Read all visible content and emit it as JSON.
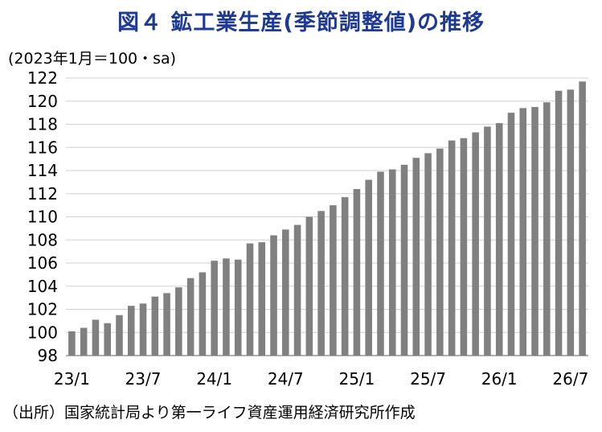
{
  "chart_data": {
    "type": "bar",
    "title": "図４ 鉱工業生産(季節調整値)の推移",
    "unit_label": "(2023年1月＝100・sa)",
    "source": "（出所）国家統計局より第一ライフ資産運用経済研究所作成",
    "xlabel": "",
    "ylabel": "",
    "ylim": [
      98,
      122
    ],
    "yticks": [
      98,
      100,
      102,
      104,
      106,
      108,
      110,
      112,
      114,
      116,
      118,
      120,
      122
    ],
    "grid": true,
    "bar_color": "#808080",
    "categories": [
      "23/1",
      "23/2",
      "23/3",
      "23/4",
      "23/5",
      "23/6",
      "23/7",
      "23/8",
      "23/9",
      "23/10",
      "23/11",
      "23/12",
      "24/1",
      "24/2",
      "24/3",
      "24/4",
      "24/5",
      "24/6",
      "24/7",
      "24/8",
      "24/9",
      "24/10",
      "24/11",
      "24/12",
      "25/1",
      "25/2",
      "25/3",
      "25/4",
      "25/5",
      "25/6",
      "25/7",
      "25/8",
      "25/9",
      "25/10",
      "25/11",
      "25/12",
      "26/1",
      "26/2",
      "26/3",
      "26/4",
      "26/5",
      "26/6",
      "26/7",
      "26/8"
    ],
    "xtick_labels": [
      "23/1",
      "23/7",
      "24/1",
      "24/7",
      "25/1",
      "25/7",
      "26/1",
      "26/7"
    ],
    "xtick_indices": [
      0,
      6,
      12,
      18,
      24,
      30,
      36,
      42
    ],
    "values": [
      100.1,
      100.4,
      101.1,
      100.8,
      101.5,
      102.3,
      102.5,
      103.1,
      103.4,
      103.9,
      104.7,
      105.2,
      106.2,
      106.4,
      106.3,
      107.7,
      107.8,
      108.4,
      108.9,
      109.3,
      110.0,
      110.5,
      111.0,
      111.7,
      112.4,
      113.2,
      113.9,
      114.1,
      114.5,
      115.1,
      115.5,
      115.9,
      116.6,
      116.8,
      117.3,
      117.8,
      118.1,
      119.0,
      119.4,
      119.5,
      119.9,
      120.9,
      121.0,
      121.7
    ]
  }
}
